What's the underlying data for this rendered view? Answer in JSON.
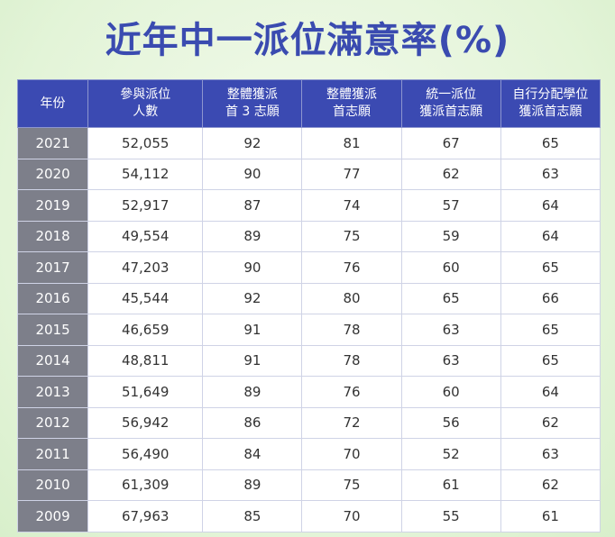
{
  "title": "近年中一派位滿意率(%)",
  "chart_data": {
    "type": "table",
    "title": "近年中一派位滿意率(%)",
    "columns": [
      {
        "lines": [
          "年份"
        ]
      },
      {
        "lines": [
          "參與派位",
          "人數"
        ]
      },
      {
        "lines": [
          "整體獲派",
          "首 3 志願"
        ]
      },
      {
        "lines": [
          "整體獲派",
          "首志願"
        ]
      },
      {
        "lines": [
          "統一派位",
          "獲派首志願"
        ]
      },
      {
        "lines": [
          "自行分配學位",
          "獲派首志願"
        ]
      }
    ],
    "rows": [
      [
        "2021",
        "52,055",
        "92",
        "81",
        "67",
        "65"
      ],
      [
        "2020",
        "54,112",
        "90",
        "77",
        "62",
        "63"
      ],
      [
        "2019",
        "52,917",
        "87",
        "74",
        "57",
        "64"
      ],
      [
        "2018",
        "49,554",
        "89",
        "75",
        "59",
        "64"
      ],
      [
        "2017",
        "47,203",
        "90",
        "76",
        "60",
        "65"
      ],
      [
        "2016",
        "45,544",
        "92",
        "80",
        "65",
        "66"
      ],
      [
        "2015",
        "46,659",
        "91",
        "78",
        "63",
        "65"
      ],
      [
        "2014",
        "48,811",
        "91",
        "78",
        "63",
        "65"
      ],
      [
        "2013",
        "51,649",
        "89",
        "76",
        "60",
        "64"
      ],
      [
        "2012",
        "56,942",
        "86",
        "72",
        "56",
        "62"
      ],
      [
        "2011",
        "56,490",
        "84",
        "70",
        "52",
        "63"
      ],
      [
        "2010",
        "61,309",
        "89",
        "75",
        "61",
        "62"
      ],
      [
        "2009",
        "67,963",
        "85",
        "70",
        "55",
        "61"
      ]
    ]
  }
}
